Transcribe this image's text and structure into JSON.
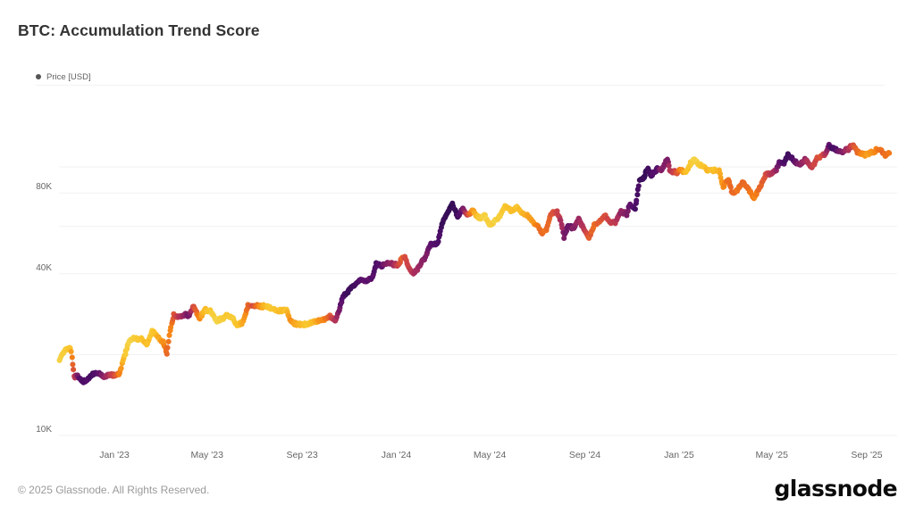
{
  "header": {
    "title": "BTC: Accumulation Trend Score"
  },
  "legend": {
    "label": "Price [USD]",
    "dot_color": "#555555"
  },
  "footer": {
    "copyright": "© 2025 Glassnode. All Rights Reserved.",
    "brand": "glassnode"
  },
  "colors": {
    "grid": "#f1f1f1",
    "tick_label": "#666666",
    "connector_line": "#b0a8b8"
  },
  "chart_data": {
    "type": "scatter",
    "title": "BTC: Accumulation Trend Score",
    "ylabel": "Price [USD]",
    "yscale": "log",
    "ylim": [
      9000,
      145000
    ],
    "grid": true,
    "legend_position": "top-left",
    "color_meaning": "dot color = Accumulation Trend Score (0 = distribution = dark purple, 1 = accumulation = yellow)",
    "colormap": [
      "#1c0c45",
      "#550f6d",
      "#a52c60",
      "#d44842",
      "#f57d15",
      "#fac228",
      "#f3d94f"
    ],
    "x_ticks": [
      {
        "date": "2023-01-01",
        "label": "Jan '23"
      },
      {
        "date": "2023-05-01",
        "label": "May '23"
      },
      {
        "date": "2023-09-01",
        "label": "Sep '23"
      },
      {
        "date": "2024-01-01",
        "label": "Jan '24"
      },
      {
        "date": "2024-05-01",
        "label": "May '24"
      },
      {
        "date": "2024-09-01",
        "label": "Sep '24"
      },
      {
        "date": "2025-01-01",
        "label": "Jan '25"
      },
      {
        "date": "2025-05-01",
        "label": "May '25"
      },
      {
        "date": "2025-09-01",
        "label": "Sep '25"
      }
    ],
    "y_gridlines": [
      10000,
      20000,
      40000,
      60000,
      80000,
      100000
    ],
    "y_tick_labels": [
      {
        "value": 10000,
        "label": "10K"
      },
      {
        "value": 40000,
        "label": "40K"
      },
      {
        "value": 80000,
        "label": "80K"
      }
    ],
    "series_name": "BTC price colored by Accumulation Trend Score",
    "series": [
      [
        "2022-10-22",
        19200,
        0.95
      ],
      [
        "2022-10-29",
        20800,
        0.92
      ],
      [
        "2022-11-05",
        21300,
        0.82
      ],
      [
        "2022-11-08",
        18500,
        0.6
      ],
      [
        "2022-11-10",
        16500,
        0.45
      ],
      [
        "2022-11-14",
        16600,
        0.25
      ],
      [
        "2022-11-21",
        15800,
        0.12
      ],
      [
        "2022-11-28",
        16200,
        0.15
      ],
      [
        "2022-12-05",
        17000,
        0.12
      ],
      [
        "2022-12-12",
        17100,
        0.18
      ],
      [
        "2022-12-19",
        16500,
        0.28
      ],
      [
        "2022-12-26",
        16800,
        0.38
      ],
      [
        "2023-01-02",
        16700,
        0.52
      ],
      [
        "2023-01-08",
        17100,
        0.68
      ],
      [
        "2023-01-14",
        19900,
        0.85
      ],
      [
        "2023-01-21",
        22700,
        0.95
      ],
      [
        "2023-01-29",
        23000,
        0.9
      ],
      [
        "2023-02-05",
        22900,
        0.85
      ],
      [
        "2023-02-12",
        21800,
        0.82
      ],
      [
        "2023-02-19",
        24600,
        0.88
      ],
      [
        "2023-02-26",
        23200,
        0.8
      ],
      [
        "2023-03-05",
        22400,
        0.72
      ],
      [
        "2023-03-10",
        20200,
        0.6
      ],
      [
        "2023-03-14",
        24700,
        0.7
      ],
      [
        "2023-03-19",
        28000,
        0.55
      ],
      [
        "2023-03-26",
        27600,
        0.38
      ],
      [
        "2023-04-02",
        28200,
        0.28
      ],
      [
        "2023-04-08",
        27900,
        0.22
      ],
      [
        "2023-04-14",
        30400,
        0.5
      ],
      [
        "2023-04-21",
        27300,
        0.7
      ],
      [
        "2023-04-28",
        29300,
        0.82
      ],
      [
        "2023-05-06",
        28900,
        0.9
      ],
      [
        "2023-05-13",
        26800,
        0.95
      ],
      [
        "2023-05-20",
        27100,
        0.92
      ],
      [
        "2023-05-28",
        28100,
        0.88
      ],
      [
        "2023-06-04",
        27100,
        0.9
      ],
      [
        "2023-06-10",
        25800,
        0.85
      ],
      [
        "2023-06-17",
        26500,
        0.78
      ],
      [
        "2023-06-23",
        30500,
        0.6
      ],
      [
        "2023-06-30",
        30400,
        0.52
      ],
      [
        "2023-07-07",
        30300,
        0.68
      ],
      [
        "2023-07-14",
        30300,
        0.8
      ],
      [
        "2023-07-21",
        29900,
        0.88
      ],
      [
        "2023-07-29",
        29300,
        0.85
      ],
      [
        "2023-08-05",
        29000,
        0.8
      ],
      [
        "2023-08-12",
        29400,
        0.85
      ],
      [
        "2023-08-17",
        26600,
        0.72
      ],
      [
        "2023-08-25",
        26000,
        0.78
      ],
      [
        "2023-09-01",
        25800,
        0.82
      ],
      [
        "2023-09-08",
        25900,
        0.86
      ],
      [
        "2023-09-16",
        26500,
        0.8
      ],
      [
        "2023-09-23",
        26600,
        0.74
      ],
      [
        "2023-09-30",
        27000,
        0.68
      ],
      [
        "2023-10-07",
        27900,
        0.55
      ],
      [
        "2023-10-14",
        26900,
        0.38
      ],
      [
        "2023-10-20",
        29700,
        0.22
      ],
      [
        "2023-10-24",
        33100,
        0.14
      ],
      [
        "2023-11-01",
        34700,
        0.1
      ],
      [
        "2023-11-09",
        36700,
        0.12
      ],
      [
        "2023-11-16",
        37900,
        0.16
      ],
      [
        "2023-11-24",
        37700,
        0.2
      ],
      [
        "2023-12-01",
        38700,
        0.17
      ],
      [
        "2023-12-06",
        43800,
        0.13
      ],
      [
        "2023-12-13",
        42900,
        0.2
      ],
      [
        "2023-12-20",
        43700,
        0.26
      ],
      [
        "2023-12-28",
        43500,
        0.32
      ],
      [
        "2024-01-03",
        42900,
        0.45
      ],
      [
        "2024-01-09",
        46100,
        0.6
      ],
      [
        "2024-01-12",
        46300,
        0.52
      ],
      [
        "2024-01-18",
        41300,
        0.45
      ],
      [
        "2024-01-24",
        40100,
        0.35
      ],
      [
        "2024-02-01",
        43100,
        0.3
      ],
      [
        "2024-02-09",
        47100,
        0.24
      ],
      [
        "2024-02-15",
        52000,
        0.18
      ],
      [
        "2024-02-23",
        51300,
        0.15
      ],
      [
        "2024-02-29",
        61200,
        0.1
      ],
      [
        "2024-03-08",
        68300,
        0.08
      ],
      [
        "2024-03-14",
        73100,
        0.07
      ],
      [
        "2024-03-20",
        65500,
        0.12
      ],
      [
        "2024-03-27",
        69900,
        0.22
      ],
      [
        "2024-04-03",
        65800,
        0.5
      ],
      [
        "2024-04-09",
        69100,
        0.75
      ],
      [
        "2024-04-17",
        63800,
        0.88
      ],
      [
        "2024-04-24",
        66400,
        0.95
      ],
      [
        "2024-05-01",
        60600,
        0.92
      ],
      [
        "2024-05-08",
        62900,
        0.95
      ],
      [
        "2024-05-15",
        66200,
        0.92
      ],
      [
        "2024-05-21",
        71400,
        0.85
      ],
      [
        "2024-05-29",
        68400,
        0.82
      ],
      [
        "2024-06-05",
        71100,
        0.85
      ],
      [
        "2024-06-12",
        67300,
        0.8
      ],
      [
        "2024-06-20",
        65100,
        0.75
      ],
      [
        "2024-06-27",
        61800,
        0.72
      ],
      [
        "2024-07-03",
        60200,
        0.66
      ],
      [
        "2024-07-07",
        56600,
        0.6
      ],
      [
        "2024-07-13",
        57900,
        0.65
      ],
      [
        "2024-07-19",
        66700,
        0.56
      ],
      [
        "2024-07-27",
        67900,
        0.48
      ],
      [
        "2024-08-02",
        61400,
        0.34
      ],
      [
        "2024-08-05",
        54000,
        0.25
      ],
      [
        "2024-08-10",
        60900,
        0.2
      ],
      [
        "2024-08-17",
        58900,
        0.26
      ],
      [
        "2024-08-24",
        64100,
        0.32
      ],
      [
        "2024-08-31",
        58900,
        0.42
      ],
      [
        "2024-09-06",
        53900,
        0.56
      ],
      [
        "2024-09-13",
        60500,
        0.62
      ],
      [
        "2024-09-21",
        63200,
        0.56
      ],
      [
        "2024-09-27",
        65800,
        0.5
      ],
      [
        "2024-10-04",
        62100,
        0.46
      ],
      [
        "2024-10-11",
        62400,
        0.4
      ],
      [
        "2024-10-18",
        68400,
        0.3
      ],
      [
        "2024-10-25",
        66600,
        0.26
      ],
      [
        "2024-10-29",
        72700,
        0.2
      ],
      [
        "2024-11-05",
        69400,
        0.15
      ],
      [
        "2024-11-11",
        88700,
        0.1
      ],
      [
        "2024-11-16",
        91000,
        0.08
      ],
      [
        "2024-11-22",
        98900,
        0.1
      ],
      [
        "2024-11-26",
        91900,
        0.15
      ],
      [
        "2024-12-04",
        98800,
        0.17
      ],
      [
        "2024-12-09",
        97300,
        0.28
      ],
      [
        "2024-12-17",
        106100,
        0.24
      ],
      [
        "2024-12-20",
        97500,
        0.35
      ],
      [
        "2024-12-28",
        95200,
        0.5
      ],
      [
        "2025-01-03",
        98200,
        0.68
      ],
      [
        "2025-01-09",
        94500,
        0.8
      ],
      [
        "2025-01-17",
        104100,
        0.9
      ],
      [
        "2025-01-21",
        106100,
        0.95
      ],
      [
        "2025-01-27",
        102100,
        0.9
      ],
      [
        "2025-02-03",
        99000,
        0.85
      ],
      [
        "2025-02-09",
        96500,
        0.8
      ],
      [
        "2025-02-15",
        97500,
        0.84
      ],
      [
        "2025-02-22",
        96200,
        0.8
      ],
      [
        "2025-02-27",
        84300,
        0.7
      ],
      [
        "2025-03-06",
        90600,
        0.62
      ],
      [
        "2025-03-11",
        79600,
        0.6
      ],
      [
        "2025-03-18",
        82700,
        0.64
      ],
      [
        "2025-03-25",
        87500,
        0.6
      ],
      [
        "2025-04-01",
        82500,
        0.64
      ],
      [
        "2025-04-08",
        76300,
        0.68
      ],
      [
        "2025-04-15",
        83700,
        0.62
      ],
      [
        "2025-04-23",
        93400,
        0.52
      ],
      [
        "2025-04-30",
        94300,
        0.42
      ],
      [
        "2025-05-07",
        96800,
        0.3
      ],
      [
        "2025-05-11",
        104100,
        0.2
      ],
      [
        "2025-05-17",
        103200,
        0.15
      ],
      [
        "2025-05-22",
        111700,
        0.1
      ],
      [
        "2025-05-29",
        105600,
        0.16
      ],
      [
        "2025-06-05",
        101600,
        0.26
      ],
      [
        "2025-06-13",
        106000,
        0.32
      ],
      [
        "2025-06-22",
        99500,
        0.45
      ],
      [
        "2025-06-28",
        107100,
        0.5
      ],
      [
        "2025-07-03",
        109600,
        0.55
      ],
      [
        "2025-07-09",
        111300,
        0.42
      ],
      [
        "2025-07-14",
        119900,
        0.2
      ],
      [
        "2025-07-18",
        118000,
        0.12
      ],
      [
        "2025-07-25",
        115100,
        0.18
      ],
      [
        "2025-08-01",
        113500,
        0.26
      ],
      [
        "2025-08-08",
        116700,
        0.36
      ],
      [
        "2025-08-14",
        121000,
        0.5
      ],
      [
        "2025-08-20",
        113400,
        0.6
      ],
      [
        "2025-08-27",
        111200,
        0.7
      ],
      [
        "2025-09-03",
        111600,
        0.75
      ],
      [
        "2025-09-10",
        114000,
        0.7
      ],
      [
        "2025-09-15",
        116000,
        0.66
      ],
      [
        "2025-09-20",
        115800,
        0.6
      ],
      [
        "2025-09-25",
        109300,
        0.62
      ],
      [
        "2025-09-30",
        112500,
        0.65
      ]
    ]
  }
}
